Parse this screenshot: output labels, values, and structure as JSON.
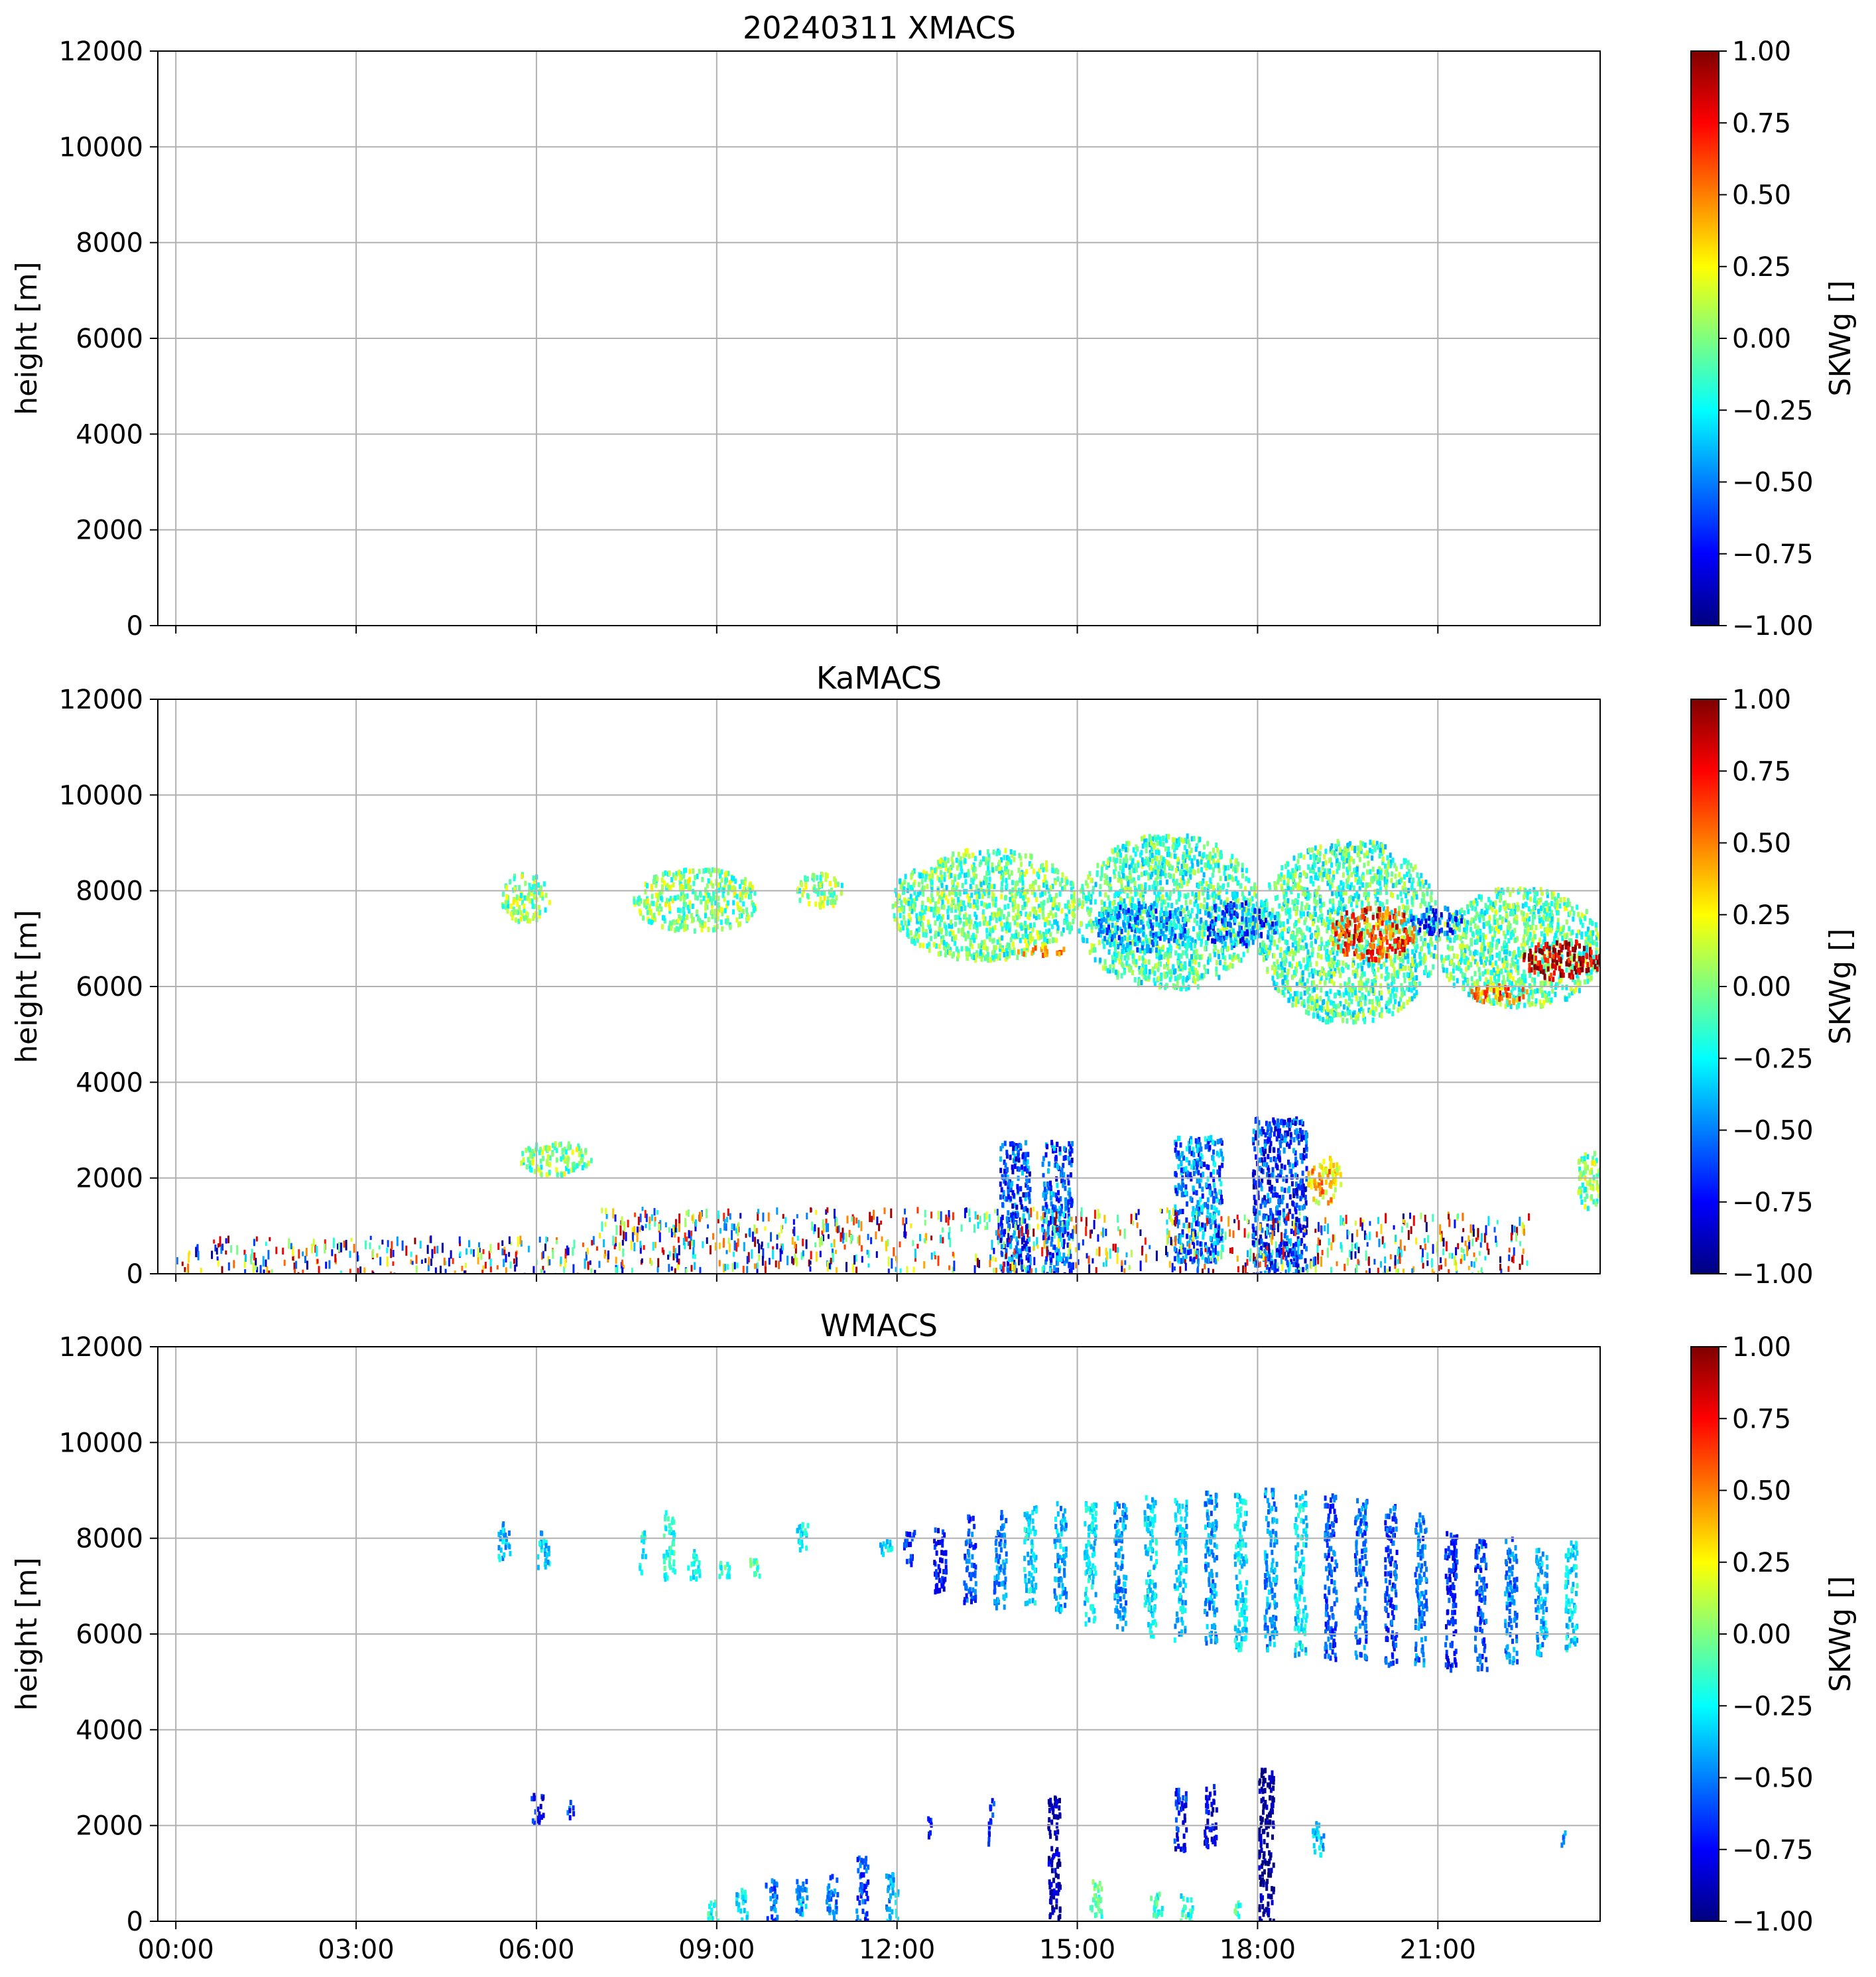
{
  "figure": {
    "title": "20240311 XMACS"
  },
  "colormap": {
    "name": "jet",
    "stops": [
      "#00007f",
      "#0000ff",
      "#007fff",
      "#00ffff",
      "#7fff7f",
      "#ffff00",
      "#ff7f00",
      "#ff0000",
      "#7f0000"
    ]
  },
  "chart_data": [
    {
      "type": "heatmap",
      "title": "20240311 XMACS",
      "ylabel": "height [m]",
      "xlabel": "",
      "xlim": [
        -0.3,
        23.7
      ],
      "ylim": [
        0,
        12000
      ],
      "grid": true,
      "x_ticks": [
        0,
        3,
        6,
        9,
        12,
        15,
        18,
        21
      ],
      "x_tick_labels": [],
      "y_ticks": [
        0,
        2000,
        4000,
        6000,
        8000,
        10000,
        12000
      ],
      "y_tick_labels": [
        "0",
        "2000",
        "4000",
        "6000",
        "8000",
        "10000",
        "12000"
      ],
      "colorbar": {
        "label": "SKWg []",
        "range": [
          -1,
          1
        ],
        "ticks": [
          "1.00",
          "0.75",
          "0.50",
          "0.25",
          "0.00",
          "−0.25",
          "−0.50",
          "−0.75",
          "−1.00"
        ]
      },
      "regions": []
    },
    {
      "type": "heatmap",
      "title": "KaMACS",
      "ylabel": "height [m]",
      "xlabel": "",
      "xlim": [
        -0.3,
        23.7
      ],
      "ylim": [
        0,
        12000
      ],
      "grid": true,
      "x_ticks": [
        0,
        3,
        6,
        9,
        12,
        15,
        18,
        21
      ],
      "x_tick_labels": [],
      "y_ticks": [
        0,
        2000,
        4000,
        6000,
        8000,
        10000,
        12000
      ],
      "y_tick_labels": [
        "0",
        "2000",
        "4000",
        "6000",
        "8000",
        "10000",
        "12000"
      ],
      "colorbar": {
        "label": "SKWg []",
        "range": [
          -1,
          1
        ],
        "ticks": [
          "1.00",
          "0.75",
          "0.50",
          "0.25",
          "0.00",
          "−0.25",
          "−0.50",
          "−0.75",
          "−1.00"
        ]
      },
      "regions": [
        {
          "kind": "cloud",
          "t0": 5.4,
          "t1": 6.2,
          "h0": 7400,
          "h1": 8400,
          "value": 0.0
        },
        {
          "kind": "cloud",
          "t0": 7.6,
          "t1": 9.7,
          "h0": 7200,
          "h1": 8500,
          "value": 0.0
        },
        {
          "kind": "cloud",
          "t0": 10.3,
          "t1": 11.1,
          "h0": 7700,
          "h1": 8400,
          "value": 0.0
        },
        {
          "kind": "cloud",
          "t0": 11.9,
          "t1": 15.0,
          "h0": 6600,
          "h1": 8900,
          "value": -0.05
        },
        {
          "kind": "cloud",
          "t0": 15.0,
          "t1": 18.0,
          "h0": 6000,
          "h1": 9200,
          "value": -0.1
        },
        {
          "kind": "cloud",
          "t0": 18.0,
          "t1": 21.0,
          "h0": 5300,
          "h1": 9100,
          "value": -0.1
        },
        {
          "kind": "cloud",
          "t0": 21.0,
          "t1": 23.7,
          "h0": 5600,
          "h1": 8100,
          "value": -0.05
        },
        {
          "kind": "cloud",
          "t0": 15.3,
          "t1": 16.8,
          "h0": 6800,
          "h1": 7800,
          "value": -0.45
        },
        {
          "kind": "cloud",
          "t0": 17.0,
          "t1": 18.3,
          "h0": 6900,
          "h1": 7800,
          "value": -0.55
        },
        {
          "kind": "cloud",
          "t0": 20.5,
          "t1": 21.4,
          "h0": 7100,
          "h1": 7700,
          "value": -0.6
        },
        {
          "kind": "cloud",
          "t0": 19.2,
          "t1": 20.6,
          "h0": 6600,
          "h1": 7700,
          "value": 0.65
        },
        {
          "kind": "cloud",
          "t0": 22.4,
          "t1": 23.7,
          "h0": 6200,
          "h1": 7000,
          "value": 0.9
        },
        {
          "kind": "cloud",
          "t0": 21.5,
          "t1": 22.5,
          "h0": 5700,
          "h1": 6100,
          "value": 0.5
        },
        {
          "kind": "cloud",
          "t0": 14.0,
          "t1": 14.8,
          "h0": 6700,
          "h1": 6900,
          "value": 0.5
        },
        {
          "kind": "cloud",
          "t0": 5.7,
          "t1": 6.9,
          "h0": 2100,
          "h1": 2800,
          "value": 0.0
        },
        {
          "kind": "column",
          "t0": 13.7,
          "t1": 14.2,
          "h0": 0,
          "h1": 2800,
          "value": -0.6
        },
        {
          "kind": "column",
          "t0": 14.4,
          "t1": 14.9,
          "h0": 0,
          "h1": 2800,
          "value": -0.55
        },
        {
          "kind": "column",
          "t0": 16.6,
          "t1": 17.4,
          "h0": 300,
          "h1": 2900,
          "value": -0.5
        },
        {
          "kind": "column",
          "t0": 17.9,
          "t1": 18.8,
          "h0": 0,
          "h1": 3300,
          "value": -0.65
        },
        {
          "kind": "cloud",
          "t0": 18.8,
          "t1": 19.4,
          "h0": 1500,
          "h1": 2500,
          "value": 0.35
        },
        {
          "kind": "cloud",
          "t0": 23.3,
          "t1": 23.7,
          "h0": 1400,
          "h1": 2700,
          "value": 0.0
        },
        {
          "kind": "noise",
          "t0": 7.0,
          "t1": 17.5,
          "h0": 100,
          "h1": 1400,
          "value": 0.0
        },
        {
          "kind": "noise",
          "t0": 17.5,
          "t1": 22.5,
          "h0": 0,
          "h1": 1300,
          "value": 0.0
        },
        {
          "kind": "noise",
          "t0": 0.0,
          "t1": 7.0,
          "h0": 0,
          "h1": 800,
          "value": 0.0
        }
      ]
    },
    {
      "type": "heatmap",
      "title": "WMACS",
      "ylabel": "height [m]",
      "xlabel": "",
      "xlim": [
        -0.3,
        23.7
      ],
      "ylim": [
        0,
        12000
      ],
      "grid": true,
      "x_ticks": [
        0,
        3,
        6,
        9,
        12,
        15,
        18,
        21
      ],
      "x_tick_labels": [
        "00:00",
        "03:00",
        "06:00",
        "09:00",
        "12:00",
        "15:00",
        "18:00",
        "21:00"
      ],
      "y_ticks": [
        0,
        2000,
        4000,
        6000,
        8000,
        10000,
        12000
      ],
      "y_tick_labels": [
        "0",
        "2000",
        "4000",
        "6000",
        "8000",
        "10000",
        "12000"
      ],
      "colorbar": {
        "label": "SKWg []",
        "range": [
          -1,
          1
        ],
        "ticks": [
          "1.00",
          "0.75",
          "0.50",
          "0.25",
          "0.00",
          "−0.25",
          "−0.50",
          "−0.75",
          "−1.00"
        ]
      },
      "regions": [
        {
          "kind": "stripe",
          "t0": 5.35,
          "t1": 5.55,
          "h0": 7600,
          "h1": 8400,
          "value": -0.35
        },
        {
          "kind": "stripe",
          "t0": 6.0,
          "t1": 6.2,
          "h0": 7400,
          "h1": 8200,
          "value": -0.35
        },
        {
          "kind": "stripe",
          "t0": 7.7,
          "t1": 7.8,
          "h0": 7300,
          "h1": 8200,
          "value": -0.2
        },
        {
          "kind": "stripe",
          "t0": 8.1,
          "t1": 8.3,
          "h0": 7200,
          "h1": 8600,
          "value": -0.2
        },
        {
          "kind": "stripe",
          "t0": 8.5,
          "t1": 8.7,
          "h0": 7200,
          "h1": 7800,
          "value": -0.2
        },
        {
          "kind": "stripe",
          "t0": 9.0,
          "t1": 9.2,
          "h0": 7200,
          "h1": 7600,
          "value": -0.15
        },
        {
          "kind": "stripe",
          "t0": 9.5,
          "t1": 9.7,
          "h0": 7200,
          "h1": 7600,
          "value": -0.15
        },
        {
          "kind": "stripe",
          "t0": 10.3,
          "t1": 10.5,
          "h0": 7800,
          "h1": 8400,
          "value": -0.25
        },
        {
          "kind": "stripe",
          "t0": 11.7,
          "t1": 11.9,
          "h0": 7600,
          "h1": 8000,
          "value": -0.3
        },
        {
          "kind": "stripe",
          "t0": 12.1,
          "t1": 12.3,
          "h0": 7500,
          "h1": 8200,
          "value": -0.65
        },
        {
          "kind": "stripe",
          "t0": 12.6,
          "t1": 12.8,
          "h0": 6900,
          "h1": 8300,
          "value": -0.7
        },
        {
          "kind": "stripe",
          "t0": 13.1,
          "t1": 13.3,
          "h0": 6700,
          "h1": 8500,
          "value": -0.6
        },
        {
          "kind": "stripe",
          "t0": 13.6,
          "t1": 13.8,
          "h0": 6600,
          "h1": 8600,
          "value": -0.5
        },
        {
          "kind": "stripe",
          "t0": 14.1,
          "t1": 14.3,
          "h0": 6600,
          "h1": 8700,
          "value": -0.3
        },
        {
          "kind": "stripe",
          "t0": 14.6,
          "t1": 14.8,
          "h0": 6500,
          "h1": 8800,
          "value": -0.4
        },
        {
          "kind": "stripe",
          "t0": 15.1,
          "t1": 15.3,
          "h0": 6200,
          "h1": 8800,
          "value": -0.3
        },
        {
          "kind": "stripe",
          "t0": 15.6,
          "t1": 15.8,
          "h0": 6100,
          "h1": 8800,
          "value": -0.45
        },
        {
          "kind": "stripe",
          "t0": 16.1,
          "t1": 16.3,
          "h0": 6000,
          "h1": 8900,
          "value": -0.3
        },
        {
          "kind": "stripe",
          "t0": 16.6,
          "t1": 16.8,
          "h0": 5900,
          "h1": 8900,
          "value": -0.35
        },
        {
          "kind": "stripe",
          "t0": 17.1,
          "t1": 17.3,
          "h0": 5800,
          "h1": 9000,
          "value": -0.45
        },
        {
          "kind": "stripe",
          "t0": 17.6,
          "t1": 17.8,
          "h0": 5700,
          "h1": 9000,
          "value": -0.3
        },
        {
          "kind": "stripe",
          "t0": 18.1,
          "t1": 18.3,
          "h0": 5700,
          "h1": 9100,
          "value": -0.45
        },
        {
          "kind": "stripe",
          "t0": 18.6,
          "t1": 18.8,
          "h0": 5600,
          "h1": 9000,
          "value": -0.3
        },
        {
          "kind": "stripe",
          "t0": 19.1,
          "t1": 19.3,
          "h0": 5500,
          "h1": 9000,
          "value": -0.6
        },
        {
          "kind": "stripe",
          "t0": 19.6,
          "t1": 19.8,
          "h0": 5500,
          "h1": 8900,
          "value": -0.55
        },
        {
          "kind": "stripe",
          "t0": 20.1,
          "t1": 20.3,
          "h0": 5400,
          "h1": 8800,
          "value": -0.6
        },
        {
          "kind": "stripe",
          "t0": 20.6,
          "t1": 20.8,
          "h0": 5400,
          "h1": 8600,
          "value": -0.5
        },
        {
          "kind": "stripe",
          "t0": 21.1,
          "t1": 21.3,
          "h0": 5300,
          "h1": 8200,
          "value": -0.7
        },
        {
          "kind": "stripe",
          "t0": 21.6,
          "t1": 21.8,
          "h0": 5300,
          "h1": 8000,
          "value": -0.6
        },
        {
          "kind": "stripe",
          "t0": 22.1,
          "t1": 22.3,
          "h0": 5400,
          "h1": 8100,
          "value": -0.5
        },
        {
          "kind": "stripe",
          "t0": 22.6,
          "t1": 22.8,
          "h0": 5600,
          "h1": 7800,
          "value": -0.4
        },
        {
          "kind": "stripe",
          "t0": 23.1,
          "t1": 23.3,
          "h0": 5700,
          "h1": 8000,
          "value": -0.3
        },
        {
          "kind": "stripe",
          "t0": 5.9,
          "t1": 6.1,
          "h0": 2100,
          "h1": 2700,
          "value": -0.75
        },
        {
          "kind": "stripe",
          "t0": 6.5,
          "t1": 6.6,
          "h0": 2200,
          "h1": 2600,
          "value": -0.6
        },
        {
          "kind": "stripe",
          "t0": 12.5,
          "t1": 12.6,
          "h0": 1800,
          "h1": 2300,
          "value": -0.65
        },
        {
          "kind": "stripe",
          "t0": 13.5,
          "t1": 13.6,
          "h0": 1600,
          "h1": 2600,
          "value": -0.7
        },
        {
          "kind": "stripe",
          "t0": 14.5,
          "t1": 14.7,
          "h0": 100,
          "h1": 2800,
          "value": -0.9
        },
        {
          "kind": "stripe",
          "t0": 16.6,
          "t1": 16.8,
          "h0": 1500,
          "h1": 2800,
          "value": -0.7
        },
        {
          "kind": "stripe",
          "t0": 17.1,
          "t1": 17.3,
          "h0": 1600,
          "h1": 2900,
          "value": -0.8
        },
        {
          "kind": "stripe",
          "t0": 18.0,
          "t1": 18.25,
          "h0": 0,
          "h1": 3300,
          "value": -0.95
        },
        {
          "kind": "stripe",
          "t0": 18.9,
          "t1": 19.1,
          "h0": 1400,
          "h1": 2100,
          "value": -0.35
        },
        {
          "kind": "stripe",
          "t0": 9.8,
          "t1": 10.0,
          "h0": 0,
          "h1": 900,
          "value": -0.55
        },
        {
          "kind": "stripe",
          "t0": 10.3,
          "t1": 10.5,
          "h0": 0,
          "h1": 900,
          "value": -0.45
        },
        {
          "kind": "stripe",
          "t0": 10.8,
          "t1": 11.0,
          "h0": 0,
          "h1": 1000,
          "value": -0.5
        },
        {
          "kind": "stripe",
          "t0": 11.3,
          "t1": 11.5,
          "h0": 0,
          "h1": 1400,
          "value": -0.6
        },
        {
          "kind": "stripe",
          "t0": 11.8,
          "t1": 12.0,
          "h0": 0,
          "h1": 1100,
          "value": -0.4
        },
        {
          "kind": "stripe",
          "t0": 9.3,
          "t1": 9.5,
          "h0": 0,
          "h1": 700,
          "value": -0.3
        },
        {
          "kind": "stripe",
          "t0": 8.8,
          "t1": 9.0,
          "h0": 0,
          "h1": 500,
          "value": -0.2
        },
        {
          "kind": "stripe",
          "t0": 15.2,
          "t1": 15.4,
          "h0": 0,
          "h1": 900,
          "value": -0.1
        },
        {
          "kind": "stripe",
          "t0": 16.2,
          "t1": 16.4,
          "h0": 0,
          "h1": 700,
          "value": -0.15
        },
        {
          "kind": "stripe",
          "t0": 16.7,
          "t1": 16.9,
          "h0": 0,
          "h1": 600,
          "value": -0.2
        },
        {
          "kind": "stripe",
          "t0": 17.6,
          "t1": 17.7,
          "h0": 0,
          "h1": 500,
          "value": -0.15
        },
        {
          "kind": "stripe",
          "t0": 23.0,
          "t1": 23.1,
          "h0": 1600,
          "h1": 1900,
          "value": -0.5
        }
      ]
    }
  ]
}
